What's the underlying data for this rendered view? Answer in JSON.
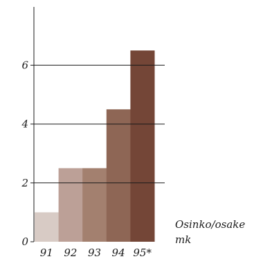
{
  "chart_data": {
    "type": "bar",
    "categories": [
      "91",
      "92",
      "93",
      "94",
      "95*"
    ],
    "values": [
      1,
      2.5,
      2.5,
      4.5,
      6.5
    ],
    "colors": [
      "#d8cbc5",
      "#bca097",
      "#a3806f",
      "#8e6655",
      "#744637"
    ],
    "grid_color": "#1a1a1a",
    "y_ticks": [
      0,
      2,
      4,
      6
    ],
    "ylim": [
      0,
      8
    ],
    "grid": true,
    "annotation": [
      "Osinko/osake",
      "mk"
    ]
  }
}
